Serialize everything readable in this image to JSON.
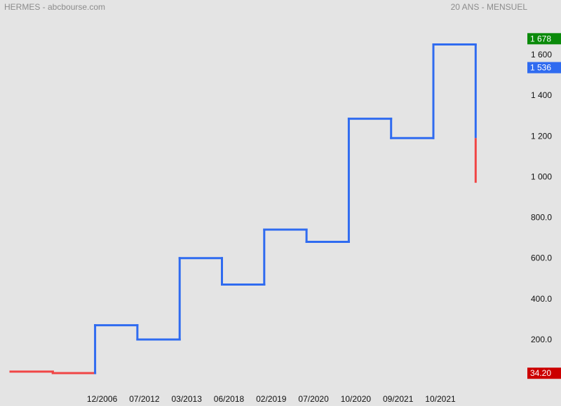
{
  "header": {
    "title": "HERMES - abcbourse.com",
    "period": "20 ANS - MENSUEL"
  },
  "colors": {
    "up": "#2f6bf0",
    "down": "#f04545",
    "badge_high": "#0a8a0a",
    "badge_last": "#2f6bf0",
    "badge_low": "#cc0000",
    "background": "#e4e4e4"
  },
  "chart_data": {
    "type": "line",
    "style": "step",
    "x_ticks": [
      "12/2006",
      "07/2012",
      "03/2013",
      "06/2018",
      "02/2019",
      "07/2020",
      "10/2020",
      "09/2021",
      "10/2021"
    ],
    "y_ticks": [
      "200.0",
      "400.0",
      "600.0",
      "800.0",
      "1 000",
      "1 200",
      "1 400",
      "1 600"
    ],
    "y_tick_values": [
      200,
      400,
      600,
      800,
      1000,
      1200,
      1400,
      1600
    ],
    "ylim": [
      -30,
      1700
    ],
    "steps": [
      {
        "from": 0,
        "to": 2,
        "value": 42,
        "color": "down"
      },
      {
        "from": 2,
        "to": 4,
        "value": 35,
        "color": "down"
      },
      {
        "from": 4,
        "to": 6,
        "value": 270,
        "color": "up"
      },
      {
        "from": 6,
        "to": 8,
        "value": 200,
        "color": "up"
      },
      {
        "from": 8,
        "to": 10,
        "value": 600,
        "color": "up"
      },
      {
        "from": 10,
        "to": 12,
        "value": 470,
        "color": "up"
      },
      {
        "from": 12,
        "to": 14,
        "value": 740,
        "color": "up"
      },
      {
        "from": 14,
        "to": 16,
        "value": 680,
        "color": "up"
      },
      {
        "from": 16,
        "to": 18,
        "value": 1285,
        "color": "up"
      },
      {
        "from": 18,
        "to": 20,
        "value": 1190,
        "color": "up"
      },
      {
        "from": 20,
        "to": 22,
        "value": 1650,
        "color": "up"
      }
    ],
    "last_drop": {
      "at": 22,
      "from_value": 1650,
      "mid_value": 1190,
      "to_value": 970
    },
    "x_tick_index": [
      4,
      6,
      8,
      10,
      12,
      14,
      16,
      18,
      20
    ],
    "badges": [
      {
        "label": "1 678",
        "value": 1678,
        "color": "badge_high"
      },
      {
        "label": "1 536",
        "value": 1536,
        "color": "badge_last"
      },
      {
        "label": "34.20",
        "value": 34.2,
        "color": "badge_low"
      }
    ]
  }
}
